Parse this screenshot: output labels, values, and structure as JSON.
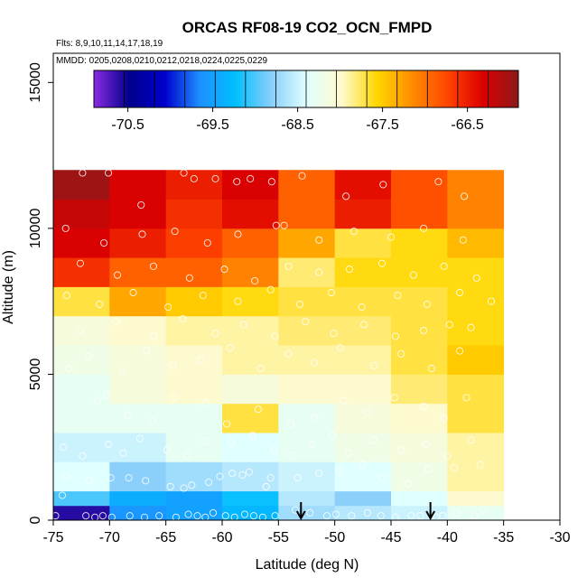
{
  "chart_data": {
    "type": "heatmap",
    "title": "ORCAS RF08-19 CO2_OCN_FMPD",
    "flights_note": "Flts: 8,9,10,11,14,17,18,19",
    "dates_note": "MMDD: 0205,0208,0210,0212,0218,0224,0225,0229",
    "xlabel": "Latitude (deg N)",
    "ylabel": "Altitude (m)",
    "xlim": [
      -75,
      -30
    ],
    "ylim": [
      0,
      16000
    ],
    "x_ticks": [
      -75,
      -70,
      -65,
      -60,
      -55,
      -50,
      -45,
      -40,
      -35,
      -30
    ],
    "x_tick_labels": [
      "-75",
      "-70",
      "-65",
      "-60",
      "-55",
      "-50",
      "-45",
      "-40",
      "-35",
      "-30"
    ],
    "y_ticks": [
      0,
      5000,
      10000,
      15000
    ],
    "y_tick_labels": [
      "0",
      "5000",
      "10000",
      "15000"
    ],
    "colorbar": {
      "min": -70.9,
      "max": -65.9,
      "ticks": [
        -70.5,
        -69.5,
        -68.5,
        -67.5,
        -66.5
      ],
      "tick_labels": [
        "-70.5",
        "-69.5",
        "-68.5",
        "-67.5",
        "-66.5"
      ],
      "colors": [
        "#8a2be2",
        "#00008b",
        "#0000cd",
        "#1e90ff",
        "#00bfff",
        "#87cefa",
        "#e0ffff",
        "#fffacd",
        "#ffd700",
        "#ff8c00",
        "#ff4500",
        "#dc0000",
        "#8b1a1a"
      ]
    },
    "cell_lat_edges": [
      -75,
      -70,
      -65,
      -60,
      -55,
      -50,
      -45,
      -40,
      -35
    ],
    "cell_alt_edges": [
      0,
      500,
      1000,
      2000,
      3000,
      4000,
      5000,
      6000,
      7000,
      8000,
      9000,
      10000,
      11000,
      12000
    ],
    "cells": [
      [
        -70.6,
        -69.6,
        -69.5,
        -69.3,
        -68.7,
        -68.6,
        -68.5,
        -68.3
      ],
      [
        -69.0,
        -69.4,
        -69.5,
        -69.2,
        -68.6,
        -68.8,
        -68.4,
        -68.0
      ],
      [
        -68.4,
        -68.8,
        -68.7,
        -68.6,
        -68.5,
        -68.4,
        -68.2,
        -67.9
      ],
      [
        -68.5,
        -68.5,
        -68.3,
        -68.4,
        -68.3,
        -68.2,
        -68.1,
        -67.9
      ],
      [
        -68.3,
        -68.3,
        -68.3,
        -67.7,
        -68.3,
        -68.1,
        -68.0,
        -67.7
      ],
      [
        -68.3,
        -68.1,
        -68.0,
        -68.1,
        -68.0,
        -68.0,
        -67.8,
        -67.7
      ],
      [
        -68.2,
        -68.1,
        -68.0,
        -67.9,
        -67.9,
        -67.9,
        -67.7,
        -67.5
      ],
      [
        -68.1,
        -68.0,
        -67.9,
        -67.9,
        -67.8,
        -67.8,
        -67.7,
        -67.6
      ],
      [
        -67.7,
        -67.3,
        -67.5,
        -67.6,
        -67.7,
        -67.7,
        -67.7,
        -67.6
      ],
      [
        -66.6,
        -66.9,
        -66.9,
        -67.1,
        -67.8,
        -67.6,
        -67.6,
        -67.6
      ],
      [
        -66.3,
        -66.5,
        -66.7,
        -66.9,
        -67.3,
        -67.7,
        -67.6,
        -67.4
      ],
      [
        -66.2,
        -66.3,
        -66.6,
        -66.4,
        -66.9,
        -66.5,
        -66.8,
        -67.1
      ],
      [
        -66.0,
        -66.3,
        -66.5,
        -66.3,
        -66.9,
        -66.4,
        -66.8,
        -67.1
      ]
    ],
    "sample_points": [
      [
        -74.8,
        150
      ],
      [
        -74.2,
        850
      ],
      [
        -72.1,
        150
      ],
      [
        -71.3,
        100
      ],
      [
        -70.6,
        150
      ],
      [
        -69.8,
        100
      ],
      [
        -68.2,
        150
      ],
      [
        -66.9,
        100
      ],
      [
        -65.6,
        150
      ],
      [
        -64.1,
        100
      ],
      [
        -63.0,
        200
      ],
      [
        -62.2,
        150
      ],
      [
        -61.5,
        100
      ],
      [
        -60.8,
        250
      ],
      [
        -59.7,
        150
      ],
      [
        -58.9,
        100
      ],
      [
        -58.0,
        200
      ],
      [
        -57.2,
        150
      ],
      [
        -56.4,
        100
      ],
      [
        -55.3,
        150
      ],
      [
        -53.5,
        350
      ],
      [
        -52.2,
        250
      ],
      [
        -50.7,
        150
      ],
      [
        -49.9,
        200
      ],
      [
        -48.5,
        150
      ],
      [
        -47.1,
        250
      ],
      [
        -45.9,
        150
      ],
      [
        -44.6,
        100
      ],
      [
        -43.2,
        150
      ],
      [
        -42.4,
        150
      ],
      [
        -41.0,
        100
      ],
      [
        -40.4,
        150
      ],
      [
        -39.2,
        250
      ],
      [
        -37.6,
        150
      ],
      [
        -36.8,
        350
      ],
      [
        -73.9,
        1500
      ],
      [
        -71.8,
        1350
      ],
      [
        -69.9,
        1450
      ],
      [
        -68.3,
        1450
      ],
      [
        -66.8,
        1350
      ],
      [
        -64.6,
        1150
      ],
      [
        -63.4,
        1100
      ],
      [
        -62.7,
        1200
      ],
      [
        -61.2,
        1300
      ],
      [
        -60.2,
        1500
      ],
      [
        -59.1,
        1600
      ],
      [
        -58.2,
        1550
      ],
      [
        -57.6,
        1650
      ],
      [
        -56.1,
        1150
      ],
      [
        -55.7,
        1450
      ],
      [
        -53.3,
        1450
      ],
      [
        -51.4,
        1600
      ],
      [
        -49.6,
        1700
      ],
      [
        -47.5,
        1900
      ],
      [
        -45.8,
        1450
      ],
      [
        -43.5,
        1250
      ],
      [
        -41.7,
        1750
      ],
      [
        -39.4,
        1800
      ],
      [
        -37.1,
        1900
      ],
      [
        -74.1,
        2500
      ],
      [
        -72.4,
        2200
      ],
      [
        -70.1,
        2600
      ],
      [
        -68.8,
        2300
      ],
      [
        -67.3,
        2800
      ],
      [
        -64.9,
        2400
      ],
      [
        -63.1,
        2200
      ],
      [
        -61.5,
        2700
      ],
      [
        -59.2,
        2650
      ],
      [
        -57.3,
        2900
      ],
      [
        -55.4,
        2400
      ],
      [
        -53.8,
        2200
      ],
      [
        -52.0,
        2600
      ],
      [
        -50.2,
        2900
      ],
      [
        -48.8,
        2300
      ],
      [
        -46.6,
        2750
      ],
      [
        -44.1,
        2400
      ],
      [
        -41.9,
        2600
      ],
      [
        -40.0,
        2200
      ],
      [
        -37.9,
        2750
      ],
      [
        -71.1,
        4100
      ],
      [
        -70.3,
        4300
      ],
      [
        -68.4,
        3600
      ],
      [
        -66.2,
        3400
      ],
      [
        -64.3,
        4200
      ],
      [
        -61.5,
        4000
      ],
      [
        -59.6,
        3300
      ],
      [
        -56.8,
        3800
      ],
      [
        -53.9,
        3300
      ],
      [
        -51.8,
        3500
      ],
      [
        -49.2,
        4100
      ],
      [
        -47.1,
        3700
      ],
      [
        -44.7,
        4200
      ],
      [
        -42.1,
        3900
      ],
      [
        -40.3,
        3500
      ],
      [
        -38.3,
        4200
      ],
      [
        -73.6,
        5200
      ],
      [
        -71.9,
        5600
      ],
      [
        -68.9,
        5100
      ],
      [
        -66.7,
        5800
      ],
      [
        -64.4,
        5300
      ],
      [
        -61.9,
        5500
      ],
      [
        -59.3,
        5900
      ],
      [
        -56.6,
        5200
      ],
      [
        -54.1,
        5700
      ],
      [
        -51.8,
        5400
      ],
      [
        -49.5,
        5900
      ],
      [
        -46.5,
        5300
      ],
      [
        -44.1,
        5700
      ],
      [
        -41.4,
        5200
      ],
      [
        -38.9,
        5800
      ],
      [
        -72.6,
        6500
      ],
      [
        -69.4,
        6800
      ],
      [
        -66.1,
        6300
      ],
      [
        -63.5,
        6900
      ],
      [
        -60.6,
        6400
      ],
      [
        -58.1,
        6700
      ],
      [
        -55.3,
        6300
      ],
      [
        -52.6,
        6800
      ],
      [
        -50.1,
        6400
      ],
      [
        -47.4,
        6700
      ],
      [
        -44.6,
        6300
      ],
      [
        -42.1,
        6500
      ],
      [
        -39.8,
        6700
      ],
      [
        -37.9,
        6600
      ],
      [
        -73.8,
        7700
      ],
      [
        -70.9,
        7400
      ],
      [
        -67.9,
        7800
      ],
      [
        -64.8,
        7300
      ],
      [
        -61.7,
        7700
      ],
      [
        -58.6,
        7500
      ],
      [
        -55.7,
        7900
      ],
      [
        -53.1,
        7400
      ],
      [
        -50.3,
        7800
      ],
      [
        -47.6,
        7300
      ],
      [
        -44.4,
        7700
      ],
      [
        -41.8,
        7400
      ],
      [
        -38.9,
        7800
      ],
      [
        -36.1,
        7500
      ],
      [
        -72.6,
        8800
      ],
      [
        -69.3,
        8400
      ],
      [
        -66.1,
        8700
      ],
      [
        -62.9,
        8300
      ],
      [
        -59.8,
        8600
      ],
      [
        -57.1,
        8200
      ],
      [
        -54.1,
        8700
      ],
      [
        -51.4,
        8500
      ],
      [
        -48.7,
        8600
      ],
      [
        -45.8,
        8800
      ],
      [
        -43.0,
        8400
      ],
      [
        -40.3,
        8700
      ],
      [
        -37.4,
        8300
      ],
      [
        -73.9,
        10000
      ],
      [
        -70.5,
        9500
      ],
      [
        -67.1,
        9800
      ],
      [
        -64.2,
        9900
      ],
      [
        -61.3,
        9500
      ],
      [
        -58.6,
        9800
      ],
      [
        -55.2,
        10100
      ],
      [
        -54.5,
        10100
      ],
      [
        -51.4,
        9600
      ],
      [
        -48.3,
        9900
      ],
      [
        -45.0,
        9700
      ],
      [
        -42.1,
        10000
      ],
      [
        -38.6,
        9600
      ],
      [
        -70.1,
        11900
      ],
      [
        -67.2,
        10800
      ],
      [
        -63.4,
        11900
      ],
      [
        -60.6,
        11700
      ],
      [
        -57.5,
        11700
      ],
      [
        -55.6,
        11600
      ],
      [
        -52.9,
        11800
      ],
      [
        -49.0,
        11100
      ],
      [
        -45.7,
        11500
      ],
      [
        -40.8,
        11600
      ],
      [
        -38.5,
        11100
      ],
      [
        -72.4,
        11900
      ],
      [
        -62.5,
        11700
      ],
      [
        -58.7,
        11600
      ]
    ],
    "arrow_markers_lat": [
      -53.0,
      -41.5
    ]
  }
}
